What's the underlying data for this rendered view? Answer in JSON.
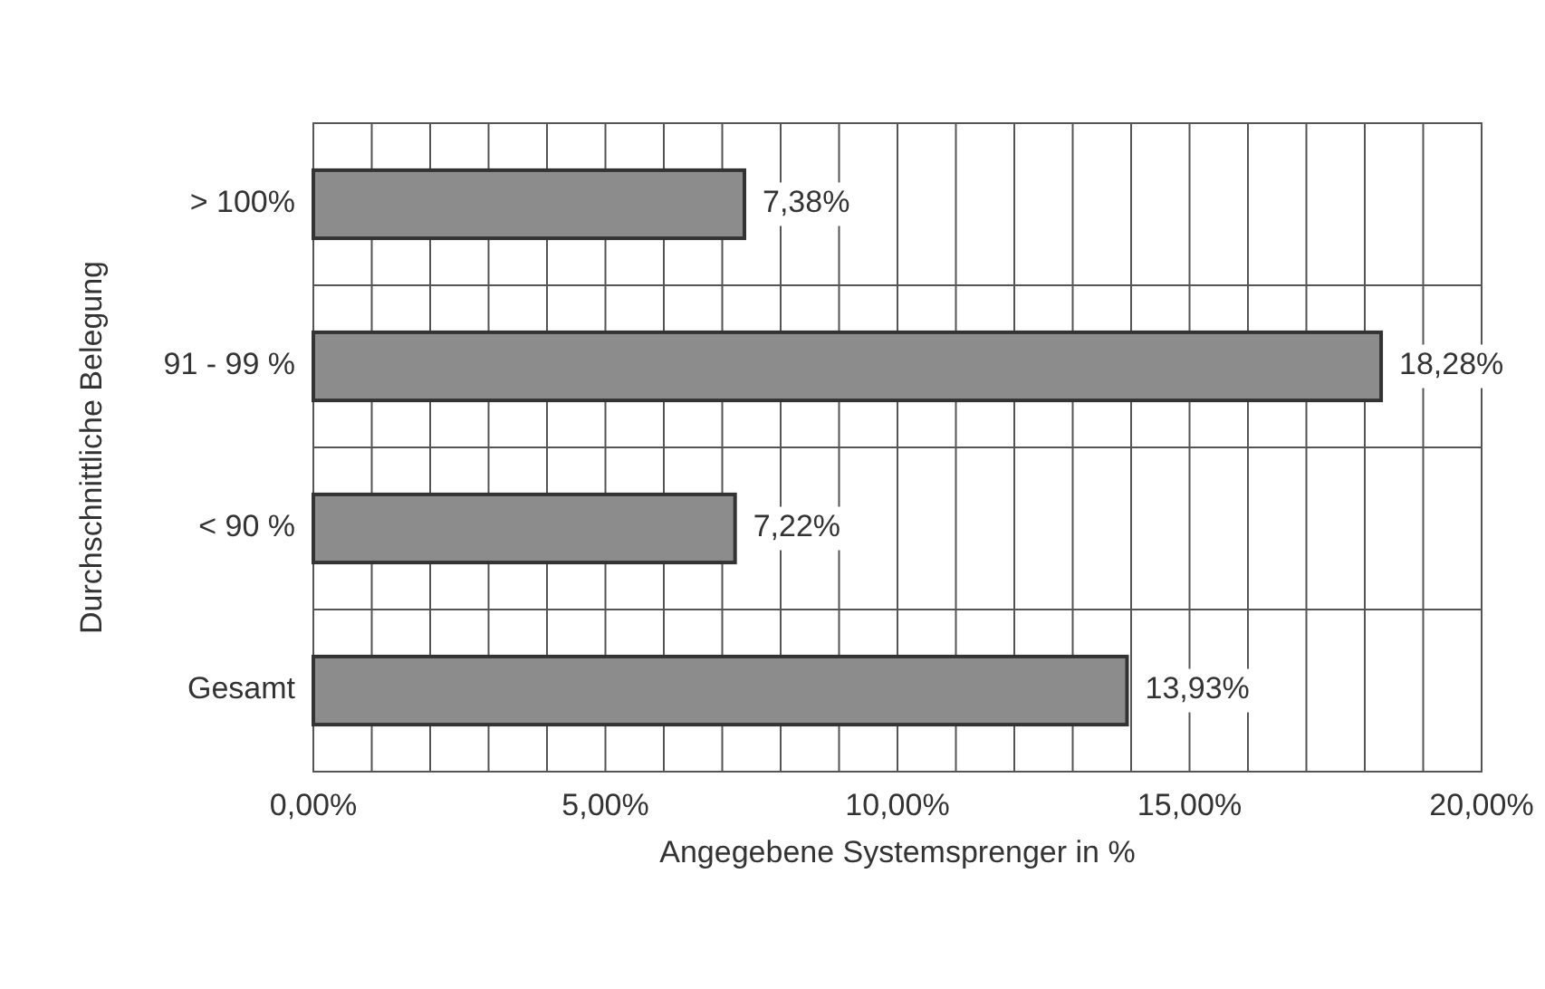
{
  "chart_data": {
    "type": "bar",
    "orientation": "horizontal",
    "xlabel": "Angegebene Systemsprenger in %",
    "ylabel": "Durchschnittliche Belegung",
    "categories": [
      "> 100%",
      "91 - 99 %",
      "< 90 %",
      "Gesamt"
    ],
    "values": [
      7.38,
      18.28,
      7.22,
      13.93
    ],
    "value_labels": [
      "7,38%",
      "18,28%",
      "7,22%",
      "13,93%"
    ],
    "color": "#8c8c8c",
    "xlim": [
      0,
      20
    ],
    "xticks": [
      {
        "value": 0,
        "label": "0,00%"
      },
      {
        "value": 1,
        "label": null
      },
      {
        "value": 2,
        "label": null
      },
      {
        "value": 3,
        "label": null
      },
      {
        "value": 4,
        "label": null
      },
      {
        "value": 5,
        "label": "5,00%"
      },
      {
        "value": 6,
        "label": null
      },
      {
        "value": 7,
        "label": null
      },
      {
        "value": 8,
        "label": null
      },
      {
        "value": 9,
        "label": null
      },
      {
        "value": 10,
        "label": "10,00%"
      },
      {
        "value": 11,
        "label": null
      },
      {
        "value": 12,
        "label": null
      },
      {
        "value": 13,
        "label": null
      },
      {
        "value": 14,
        "label": null
      },
      {
        "value": 15,
        "label": "15,00%"
      },
      {
        "value": 16,
        "label": null
      },
      {
        "value": 17,
        "label": null
      },
      {
        "value": 18,
        "label": null
      },
      {
        "value": 19,
        "label": null
      },
      {
        "value": 20,
        "label": "20,00%"
      }
    ],
    "grid": true
  }
}
